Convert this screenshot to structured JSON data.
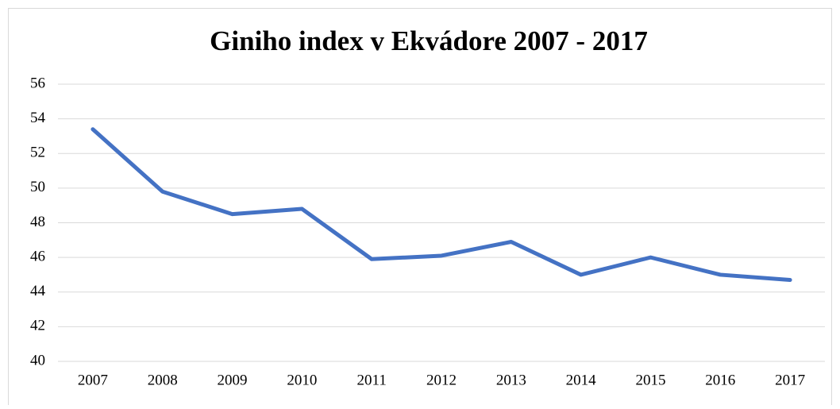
{
  "chart_data": {
    "type": "line",
    "title": "Giniho index v Ekvádore 2007 - 2017",
    "categories": [
      "2007",
      "2008",
      "2009",
      "2010",
      "2011",
      "2012",
      "2013",
      "2014",
      "2015",
      "2016",
      "2017"
    ],
    "series": [
      {
        "name": "Giniho index",
        "color": "#4472c4",
        "values": [
          53.4,
          49.8,
          48.5,
          48.8,
          45.9,
          46.1,
          46.9,
          45.0,
          46.0,
          45.0,
          44.7
        ]
      }
    ],
    "ylim": [
      40,
      56
    ],
    "yticks": [
      40,
      42,
      44,
      46,
      48,
      50,
      52,
      54,
      56
    ],
    "grid": true,
    "legend": false
  }
}
